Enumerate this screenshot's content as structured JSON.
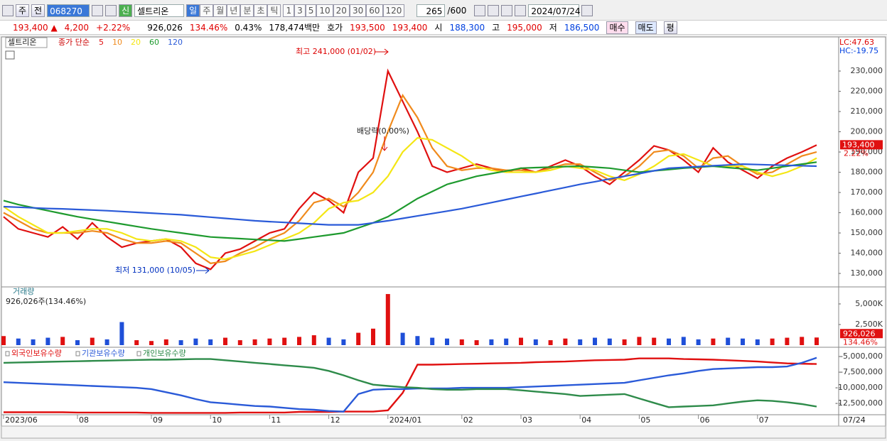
{
  "toolbar": {
    "mode": "주",
    "prev": "전",
    "code": "068270",
    "badge": "신",
    "name": "셀트리온",
    "period_tabs": [
      "일",
      "주",
      "월",
      "년",
      "분",
      "초",
      "틱"
    ],
    "intervals": [
      "1",
      "3",
      "5",
      "10",
      "20",
      "30",
      "60",
      "120"
    ],
    "count": "265",
    "max": "/600",
    "date": "2024/07/24"
  },
  "quote": {
    "price": "193,400 ▲",
    "change": "4,200",
    "rate": "+2.22%",
    "volume": "926,026",
    "volume_rate": "134.46%",
    "turnover": "0.43%",
    "amount": "178,474백만",
    "ask_label": "호가",
    "ask": "193,500",
    "bid": "193,400",
    "open_label": "시",
    "open": "188,300",
    "high_label": "고",
    "high": "195,000",
    "low_label": "저",
    "low": "186,500",
    "buy": "매수",
    "sell": "매도",
    "avg": "평"
  },
  "chart_data": [
    {
      "type": "line",
      "title": "셀트리온",
      "legend_label": "종가 단순",
      "lc_label": "LC:47.63",
      "hc_label": "HC:-19.75",
      "annotations": [
        "최고 241,000 (01/02)",
        "최저 131,000 (10/05)",
        "배당락(0.00%)"
      ],
      "price_tag": "193,400",
      "change_tag": "2.22%",
      "end_label": "07/24",
      "categories": [
        "2023/06",
        null,
        null,
        null,
        null,
        "08",
        null,
        null,
        null,
        null,
        "09",
        null,
        null,
        null,
        "10",
        null,
        null,
        null,
        "11",
        null,
        null,
        null,
        "12",
        null,
        null,
        null,
        "2024/01",
        null,
        null,
        null,
        null,
        "02",
        null,
        null,
        null,
        "03",
        null,
        null,
        null,
        "04",
        null,
        null,
        null,
        "05",
        null,
        null,
        null,
        "06",
        null,
        null,
        null,
        "07",
        null,
        null,
        null,
        null
      ],
      "ylim": [
        123700,
        245800
      ],
      "yticks": [
        {
          "value": 130000,
          "label": "130,000"
        },
        {
          "value": 140000,
          "label": "140,000"
        },
        {
          "value": 150000,
          "label": "150,000"
        },
        {
          "value": 160000,
          "label": "160,000"
        },
        {
          "value": 170000,
          "label": "170,000"
        },
        {
          "value": 180000,
          "label": "180,000"
        },
        {
          "value": 190000,
          "label": "190,000"
        },
        {
          "value": 200000,
          "label": "200,000"
        },
        {
          "value": 210000,
          "label": "210,000"
        },
        {
          "value": 220000,
          "label": "220,000"
        },
        {
          "value": 230000,
          "label": "230,000"
        }
      ],
      "series": [
        {
          "name": "5",
          "color": "#e01010",
          "values": [
            158000,
            152000,
            150000,
            148000,
            153000,
            147000,
            155000,
            148000,
            143000,
            145000,
            146000,
            147000,
            143000,
            135000,
            132000,
            140000,
            142000,
            146000,
            150000,
            152000,
            162000,
            170000,
            166000,
            160000,
            180000,
            187000,
            230000,
            215000,
            200000,
            183000,
            180000,
            182000,
            184000,
            182000,
            180000,
            182000,
            180000,
            183000,
            186000,
            183000,
            178000,
            174000,
            180000,
            186000,
            193000,
            191000,
            186000,
            180000,
            192000,
            185000,
            181000,
            177000,
            183000,
            187000,
            190000,
            193400
          ]
        },
        {
          "name": "10",
          "color": "#f08a1c",
          "values": [
            160000,
            156000,
            152000,
            150000,
            150000,
            150000,
            151000,
            150000,
            147000,
            145000,
            145000,
            146000,
            145000,
            140000,
            135000,
            136000,
            140000,
            143000,
            147000,
            150000,
            156000,
            165000,
            167000,
            163000,
            170000,
            180000,
            200000,
            218000,
            207000,
            192000,
            183000,
            181000,
            182000,
            182000,
            181000,
            181000,
            180000,
            182000,
            184000,
            184000,
            180000,
            176000,
            178000,
            183000,
            190000,
            191000,
            188000,
            182000,
            187000,
            188000,
            183000,
            179000,
            180000,
            184000,
            188000,
            190000
          ]
        },
        {
          "name": "20",
          "color": "#f4e614",
          "values": [
            163000,
            158000,
            154000,
            150000,
            150000,
            151000,
            152000,
            152000,
            150000,
            147000,
            146000,
            147000,
            146000,
            143000,
            138000,
            137000,
            139000,
            141000,
            144000,
            147000,
            150000,
            155000,
            162000,
            165000,
            166000,
            170000,
            178000,
            190000,
            197000,
            196000,
            192000,
            188000,
            183000,
            181000,
            180000,
            180000,
            180000,
            181000,
            183000,
            182000,
            181000,
            178000,
            176000,
            179000,
            183000,
            188000,
            189000,
            186000,
            183000,
            183000,
            183000,
            180000,
            178000,
            180000,
            183000,
            187000
          ]
        },
        {
          "name": "60",
          "color": "#1e9a2e",
          "values": [
            166000,
            164000,
            162500,
            161000,
            159500,
            158000,
            156800,
            155600,
            154400,
            153200,
            152000,
            151000,
            150000,
            149000,
            148000,
            147600,
            147200,
            146800,
            146400,
            146000,
            147000,
            148000,
            149000,
            150000,
            152500,
            155000,
            158000,
            162500,
            167000,
            170500,
            174000,
            176000,
            178000,
            179300,
            180600,
            182000,
            182300,
            182500,
            182800,
            183000,
            182500,
            182000,
            181000,
            180000,
            180700,
            181300,
            182000,
            182500,
            183000,
            182300,
            181700,
            181000,
            182000,
            183000,
            184000,
            185000
          ]
        },
        {
          "name": "120",
          "color": "#2a5ad8",
          "values": [
            163000,
            162700,
            162400,
            162100,
            161900,
            161600,
            161300,
            161000,
            160600,
            160200,
            159800,
            159400,
            159000,
            158400,
            157800,
            157200,
            156600,
            156000,
            155600,
            155200,
            154800,
            154400,
            154000,
            154000,
            154000,
            155000,
            156000,
            157200,
            158400,
            159600,
            160800,
            162000,
            163500,
            165000,
            166500,
            168000,
            169500,
            171000,
            172500,
            174000,
            175300,
            176700,
            178000,
            179300,
            180700,
            182000,
            182400,
            182800,
            183200,
            183600,
            184000,
            183800,
            183600,
            183400,
            183200,
            183000
          ]
        }
      ]
    },
    {
      "type": "bar",
      "title": "거래량",
      "subtitle": "926,026주(134.46%)",
      "volume_tag": "926,026",
      "rate_tag": "134.46%",
      "up_color": "#e01010",
      "down_color": "#1f4fd8",
      "values": [
        1100,
        800,
        700,
        900,
        1000,
        600,
        900,
        700,
        2800,
        600,
        500,
        700,
        600,
        800,
        700,
        900,
        600,
        700,
        800,
        900,
        1000,
        1200,
        900,
        700,
        1500,
        2000,
        6200,
        1500,
        1100,
        900,
        800,
        700,
        600,
        700,
        800,
        900,
        700,
        600,
        800,
        700,
        900,
        800,
        700,
        1000,
        900,
        800,
        1000,
        700,
        800,
        900,
        800,
        700,
        800,
        900,
        1000,
        926.026
      ],
      "ylim": [
        0,
        6980
      ],
      "yticks": [
        {
          "value": 2500,
          "label": "2,500K"
        },
        {
          "value": 5000,
          "label": "5,000K"
        }
      ]
    },
    {
      "type": "line",
      "ylim": [
        -14300000,
        -3860000
      ],
      "yticks": [
        {
          "value": -12500000,
          "label": "-12,500,000"
        },
        {
          "value": -10000000,
          "label": "-10,000,000"
        },
        {
          "value": -7500000,
          "label": "-7,500,000"
        },
        {
          "value": -5000000,
          "label": "-5,000,000"
        }
      ],
      "series": [
        {
          "name": "외국인보유수량",
          "color": "#e01010",
          "values": [
            -13900000,
            -13900000,
            -13900000,
            -13900000,
            -13900000,
            -13950000,
            -13950000,
            -13950000,
            -13950000,
            -13950000,
            -14000000,
            -14000000,
            -14000000,
            -14000000,
            -14000000,
            -14000000,
            -13950000,
            -13950000,
            -13950000,
            -13950000,
            -13850000,
            -13850000,
            -13850000,
            -13800000,
            -13800000,
            -13800000,
            -13600000,
            -10800000,
            -6300000,
            -6300000,
            -6250000,
            -6200000,
            -6150000,
            -6100000,
            -6050000,
            -6000000,
            -5900000,
            -5850000,
            -5800000,
            -5700000,
            -5600000,
            -5550000,
            -5500000,
            -5300000,
            -5300000,
            -5300000,
            -5400000,
            -5450000,
            -5500000,
            -5600000,
            -5700000,
            -5800000,
            -5950000,
            -6100000,
            -6150000,
            -6200000
          ]
        },
        {
          "name": "기관보유수량",
          "color": "#2a5ad8",
          "values": [
            -9100000,
            -9200000,
            -9300000,
            -9400000,
            -9500000,
            -9600000,
            -9700000,
            -9800000,
            -9900000,
            -10000000,
            -10200000,
            -10700000,
            -11200000,
            -11800000,
            -12300000,
            -12500000,
            -12700000,
            -12900000,
            -13000000,
            -13200000,
            -13400000,
            -13500000,
            -13700000,
            -13800000,
            -11000000,
            -10300000,
            -10200000,
            -10200000,
            -10100000,
            -10100000,
            -10100000,
            -10000000,
            -10000000,
            -10000000,
            -10000000,
            -9900000,
            -9800000,
            -9700000,
            -9600000,
            -9500000,
            -9400000,
            -9300000,
            -9200000,
            -8800000,
            -8400000,
            -8000000,
            -7700000,
            -7300000,
            -7000000,
            -6900000,
            -6800000,
            -6700000,
            -6700000,
            -6600000,
            -6000000,
            -5200000
          ]
        },
        {
          "name": "개인보유수량",
          "color": "#2e8b4a",
          "values": [
            -6000000,
            -5950000,
            -5900000,
            -5850000,
            -5800000,
            -5750000,
            -5700000,
            -5650000,
            -5600000,
            -5550000,
            -5500000,
            -5500000,
            -5450000,
            -5400000,
            -5400000,
            -5600000,
            -5800000,
            -6000000,
            -6200000,
            -6400000,
            -6600000,
            -6800000,
            -7300000,
            -8000000,
            -8800000,
            -9500000,
            -9700000,
            -9900000,
            -10000000,
            -10200000,
            -10300000,
            -10300000,
            -10200000,
            -10200000,
            -10200000,
            -10400000,
            -10600000,
            -10800000,
            -11000000,
            -11300000,
            -11200000,
            -11100000,
            -11000000,
            -11700000,
            -12400000,
            -13100000,
            -13000000,
            -12900000,
            -12800000,
            -12500000,
            -12200000,
            -12000000,
            -12100000,
            -12300000,
            -12600000,
            -13000000
          ]
        }
      ]
    }
  ]
}
